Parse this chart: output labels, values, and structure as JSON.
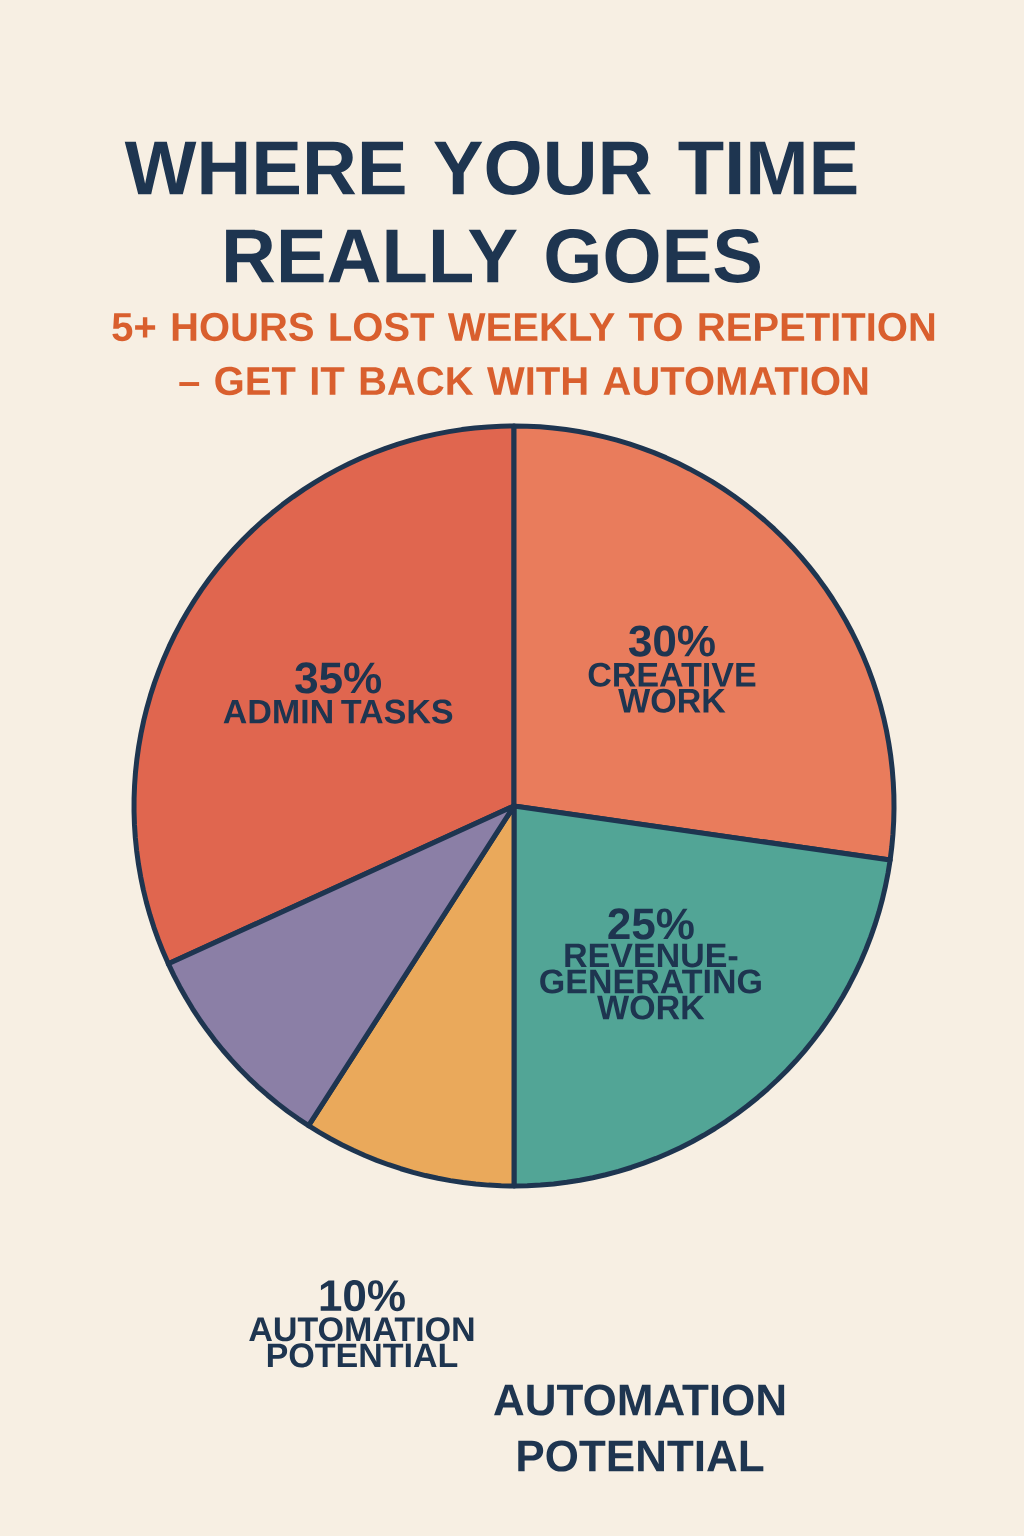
{
  "chart_data": {
    "type": "pie",
    "title": "WHERE YOUR TIME REALLY GOES",
    "subtitle": "5+ HOURS LOST WEEKLY TO REPETITION – GET IT BACK WITH AUTOMATION",
    "categories": [
      "ADMIN TASKS",
      "CREATIVE WORK",
      "REVENUE-GENERATING WORK",
      "AUTOMATION POTENTIAL",
      null
    ],
    "values": [
      35,
      30,
      25,
      10,
      10
    ],
    "value_labels": [
      "35%",
      "30%",
      "25%",
      "10%",
      null
    ],
    "colors": [
      "#e0664f",
      "#e97c5c",
      "#52a596",
      "#eaa95b",
      "#8b7fa6"
    ],
    "annotations": [
      "AUTOMATION POTENTIAL"
    ]
  }
}
